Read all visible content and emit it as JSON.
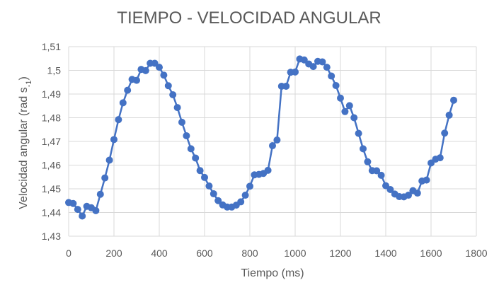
{
  "chart_data": {
    "type": "line",
    "title": "TIEMPO - VELOCIDAD ANGULAR",
    "xlabel": "Tiempo (ms)",
    "ylabel_main": "Velocidad angular (rad s",
    "ylabel_exponent": "-1",
    "ylabel_close": ")",
    "xlim": [
      0,
      1800
    ],
    "ylim": [
      1.43,
      1.51
    ],
    "x_ticks": [
      0,
      200,
      400,
      600,
      800,
      1000,
      1200,
      1400,
      1600,
      1800
    ],
    "x_tick_labels": [
      "0",
      "200",
      "400",
      "600",
      "800",
      "1000",
      "1200",
      "1400",
      "1600",
      "1800"
    ],
    "y_ticks": [
      1.43,
      1.44,
      1.45,
      1.46,
      1.47,
      1.48,
      1.49,
      1.5,
      1.51
    ],
    "y_tick_labels": [
      "1,43",
      "1,44",
      "1,45",
      "1,46",
      "1,47",
      "1,48",
      "1,49",
      "1,5",
      "1,51"
    ],
    "grid": true,
    "line_color": "#4472C4",
    "marker_color": "#4472C4",
    "series": [
      {
        "x": [
          0,
          20,
          40,
          60,
          80,
          100,
          120,
          140,
          160,
          180,
          200,
          220,
          240,
          260,
          280,
          300,
          320,
          340,
          360,
          380,
          400,
          420,
          440,
          460,
          480,
          500,
          520,
          540,
          560,
          580,
          600,
          620,
          640,
          660,
          680,
          700,
          720,
          740,
          760,
          780,
          800,
          820,
          840,
          860,
          880,
          900,
          920,
          940,
          960,
          980,
          1000,
          1020,
          1040,
          1060,
          1080,
          1100,
          1120,
          1140,
          1160,
          1180,
          1200,
          1220,
          1240,
          1260,
          1280,
          1300,
          1320,
          1340,
          1360,
          1380,
          1400,
          1420,
          1440,
          1460,
          1480,
          1500,
          1520,
          1540,
          1560,
          1580,
          1600,
          1620,
          1640,
          1660,
          1680,
          1700
        ],
        "values": [
          1.4442,
          1.4438,
          1.4413,
          1.4385,
          1.4426,
          1.442,
          1.4408,
          1.4477,
          1.4546,
          1.4621,
          1.4708,
          1.4792,
          1.4863,
          1.4916,
          1.4962,
          1.4958,
          1.5004,
          1.4999,
          1.503,
          1.503,
          1.5013,
          1.498,
          1.4935,
          1.4897,
          1.4843,
          1.4781,
          1.4724,
          1.4669,
          1.463,
          1.4577,
          1.4548,
          1.4512,
          1.4479,
          1.445,
          1.4432,
          1.4423,
          1.4423,
          1.4431,
          1.4445,
          1.4473,
          1.4511,
          1.4559,
          1.4561,
          1.4565,
          1.4578,
          1.4682,
          1.4706,
          1.4933,
          1.4933,
          1.4992,
          1.4993,
          1.5048,
          1.5044,
          1.5027,
          1.5016,
          1.5038,
          1.5036,
          1.5013,
          1.4976,
          1.4936,
          1.4883,
          1.4826,
          1.4851,
          1.48,
          1.4734,
          1.4669,
          1.4614,
          1.4577,
          1.4576,
          1.4557,
          1.4513,
          1.4497,
          1.4478,
          1.4467,
          1.4466,
          1.4473,
          1.4492,
          1.4482,
          1.4533,
          1.4537,
          1.4609,
          1.4625,
          1.4631,
          1.4735,
          1.4811,
          1.4874
        ]
      }
    ]
  }
}
